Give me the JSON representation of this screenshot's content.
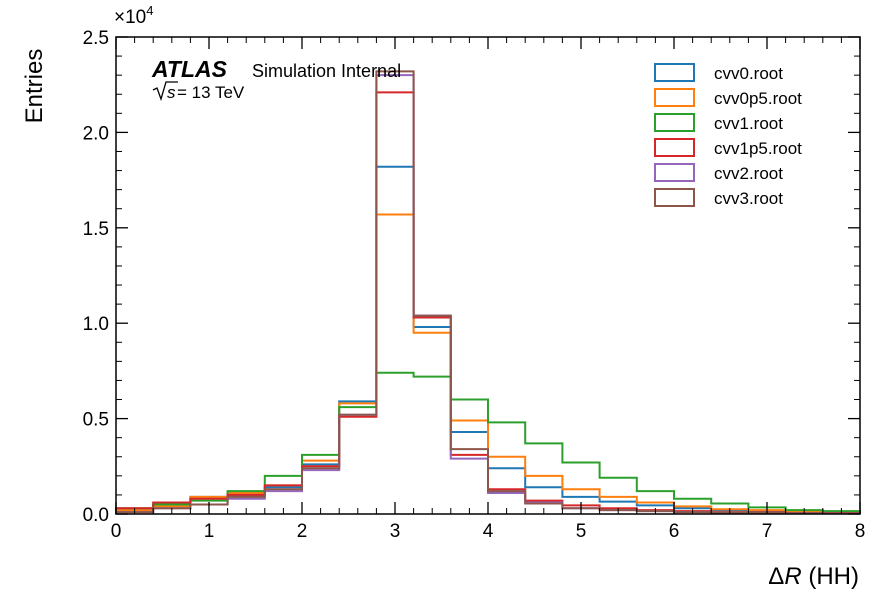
{
  "chart_data": {
    "type": "histogram",
    "xlabel_prefix": "Δ",
    "xlabel_var": "R",
    "xlabel_suffix": " (HH)",
    "ylabel": "Entries",
    "y_multiplier_base": "×10",
    "y_multiplier_exp": "4",
    "xlim": [
      0,
      8
    ],
    "ylim": [
      0,
      25000
    ],
    "x_ticks": [
      0,
      1,
      2,
      3,
      4,
      5,
      6,
      7,
      8
    ],
    "x_tick_labels": [
      "0",
      "1",
      "2",
      "3",
      "4",
      "5",
      "6",
      "7",
      "8"
    ],
    "y_ticks": [
      0,
      5000,
      10000,
      15000,
      20000,
      25000
    ],
    "y_tick_labels": [
      "0.0",
      "0.5",
      "1.0",
      "1.5",
      "2.0",
      "2.5"
    ],
    "legend_position": "top-right",
    "bin_edges": [
      0,
      0.4,
      0.8,
      1.2,
      1.6,
      2.0,
      2.4,
      2.8,
      3.2,
      3.6,
      4.0,
      4.4,
      4.8,
      5.2,
      5.6,
      6.0,
      6.4,
      6.8,
      7.2,
      7.6,
      8.0
    ],
    "series": [
      {
        "name": "cvv0.root",
        "color": "#1f77b4",
        "values": [
          200,
          500,
          900,
          1000,
          1400,
          2600,
          5900,
          18200,
          9800,
          4300,
          2400,
          1400,
          900,
          650,
          450,
          300,
          200,
          150,
          100,
          50
        ]
      },
      {
        "name": "cvv0p5.root",
        "color": "#ff7f0e",
        "values": [
          200,
          400,
          900,
          1100,
          1500,
          2800,
          5800,
          15700,
          9500,
          4900,
          3000,
          2000,
          1300,
          900,
          600,
          400,
          250,
          200,
          150,
          100
        ]
      },
      {
        "name": "cvv1.root",
        "color": "#2ca02c",
        "values": [
          300,
          500,
          700,
          1200,
          2000,
          3100,
          5600,
          7400,
          7200,
          6000,
          4800,
          3700,
          2700,
          1900,
          1200,
          800,
          550,
          350,
          200,
          150
        ]
      },
      {
        "name": "cvv1p5.root",
        "color": "#d62728",
        "values": [
          300,
          600,
          800,
          1000,
          1500,
          2500,
          5100,
          22100,
          10300,
          3100,
          1300,
          700,
          450,
          300,
          200,
          150,
          100,
          80,
          50,
          50
        ]
      },
      {
        "name": "cvv2.root",
        "color": "#9467bd",
        "values": [
          100,
          300,
          500,
          800,
          1200,
          2300,
          5200,
          23000,
          10400,
          2900,
          1100,
          600,
          300,
          200,
          150,
          100,
          80,
          50,
          40,
          30
        ]
      },
      {
        "name": "cvv3.root",
        "color": "#8c564b",
        "values": [
          100,
          300,
          500,
          900,
          1300,
          2400,
          5200,
          23200,
          10400,
          3400,
          1200,
          550,
          300,
          200,
          150,
          100,
          80,
          50,
          40,
          30
        ]
      }
    ]
  },
  "atlas_label": {
    "brand": "ATLAS",
    "status": "Simulation Internal",
    "energy_value": " = 13 TeV",
    "energy_symbol": "s"
  }
}
